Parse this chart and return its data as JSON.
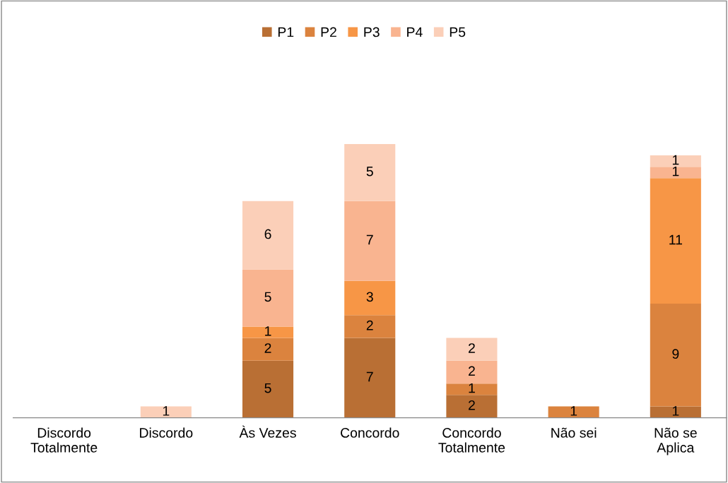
{
  "chart_data": {
    "type": "bar",
    "stacked": true,
    "data_labels": true,
    "legend": "top",
    "grid": false,
    "categories": [
      "Discordo\nTotalmente",
      "Discordo",
      "Às Vezes",
      "Concordo",
      "Concordo\nTotalmente",
      "Não sei",
      "Não se\nAplica"
    ],
    "series": [
      {
        "name": "P1",
        "color": "#b96f34",
        "values": [
          null,
          null,
          5,
          7,
          2,
          null,
          1
        ]
      },
      {
        "name": "P2",
        "color": "#db833e",
        "values": [
          null,
          null,
          2,
          2,
          1,
          1,
          9
        ]
      },
      {
        "name": "P3",
        "color": "#f79646",
        "values": [
          null,
          null,
          1,
          3,
          null,
          null,
          11
        ]
      },
      {
        "name": "P4",
        "color": "#f9b490",
        "values": [
          null,
          null,
          5,
          7,
          2,
          null,
          1
        ]
      },
      {
        "name": "P5",
        "color": "#fbcfb8",
        "values": [
          null,
          1,
          6,
          5,
          2,
          null,
          1
        ]
      }
    ]
  }
}
